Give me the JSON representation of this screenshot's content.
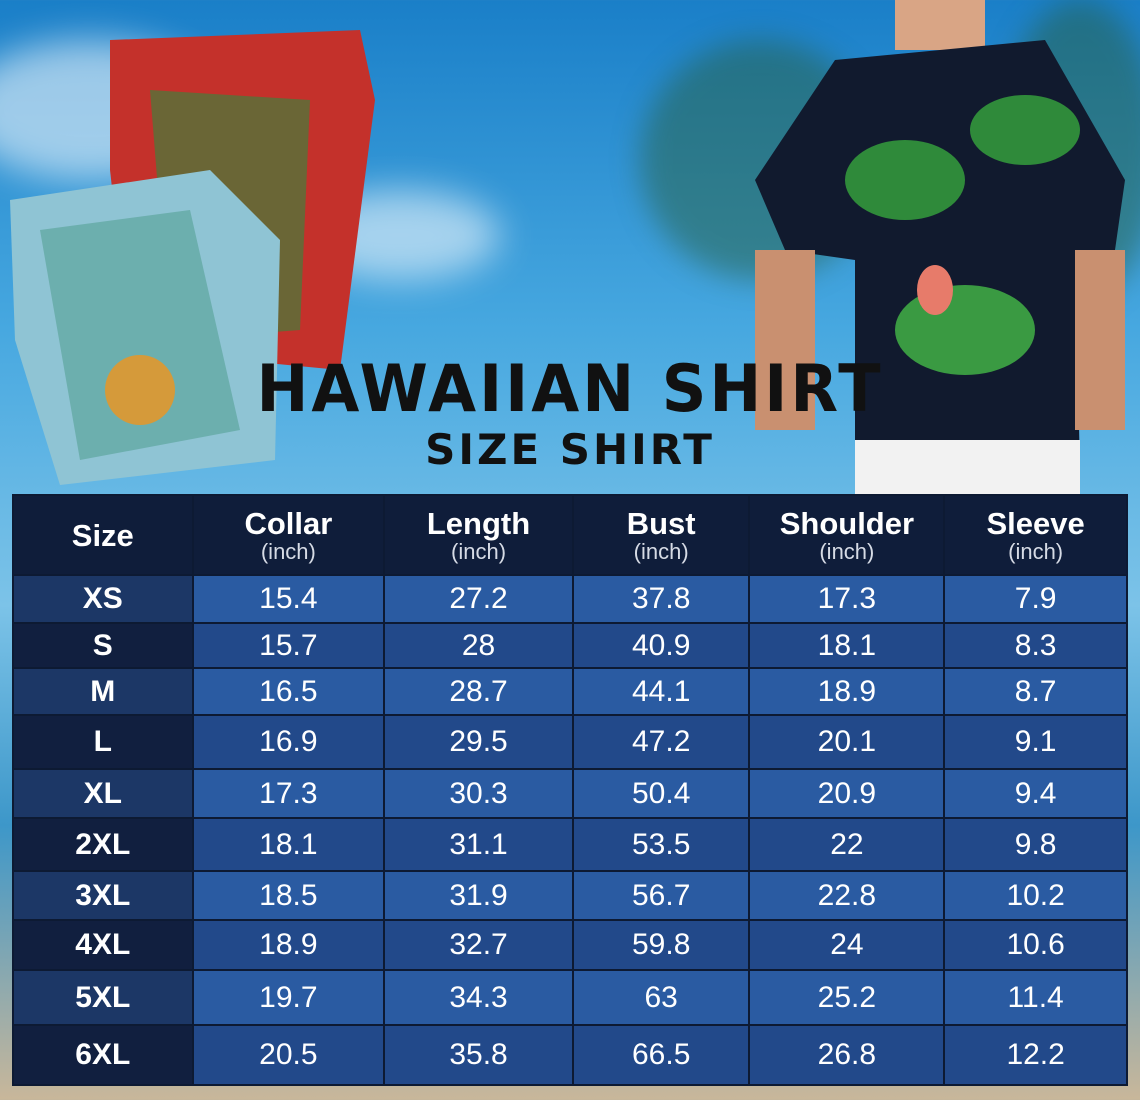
{
  "title": "HAWAIIAN SHIRT",
  "subtitle": "SIZE SHIRT",
  "table": {
    "headers": [
      {
        "label": "Size",
        "unit": ""
      },
      {
        "label": "Collar",
        "unit": "(inch)"
      },
      {
        "label": "Length",
        "unit": "(inch)"
      },
      {
        "label": "Bust",
        "unit": "(inch)"
      },
      {
        "label": "Shoulder",
        "unit": "(inch)"
      },
      {
        "label": "Sleeve",
        "unit": "(inch)"
      }
    ],
    "rows": [
      [
        "XS",
        "15.4",
        "27.2",
        "37.8",
        "17.3",
        "7.9"
      ],
      [
        "S",
        "15.7",
        "28",
        "40.9",
        "18.1",
        "8.3"
      ],
      [
        "M",
        "16.5",
        "28.7",
        "44.1",
        "18.9",
        "8.7"
      ],
      [
        "L",
        "16.9",
        "29.5",
        "47.2",
        "20.1",
        "9.1"
      ],
      [
        "XL",
        "17.3",
        "30.3",
        "50.4",
        "20.9",
        "9.4"
      ],
      [
        "2XL",
        "18.1",
        "31.1",
        "53.5",
        "22",
        "9.8"
      ],
      [
        "3XL",
        "18.5",
        "31.9",
        "56.7",
        "22.8",
        "10.2"
      ],
      [
        "4XL",
        "18.9",
        "32.7",
        "59.8",
        "24",
        "10.6"
      ],
      [
        "5XL",
        "19.7",
        "34.3",
        "63",
        "25.2",
        "11.4"
      ],
      [
        "6XL",
        "20.5",
        "35.8",
        "66.5",
        "26.8",
        "12.2"
      ]
    ]
  },
  "colors": {
    "header": "#0f1d3a",
    "row_light": "#2a5ba2",
    "row_dark": "#22498a"
  }
}
